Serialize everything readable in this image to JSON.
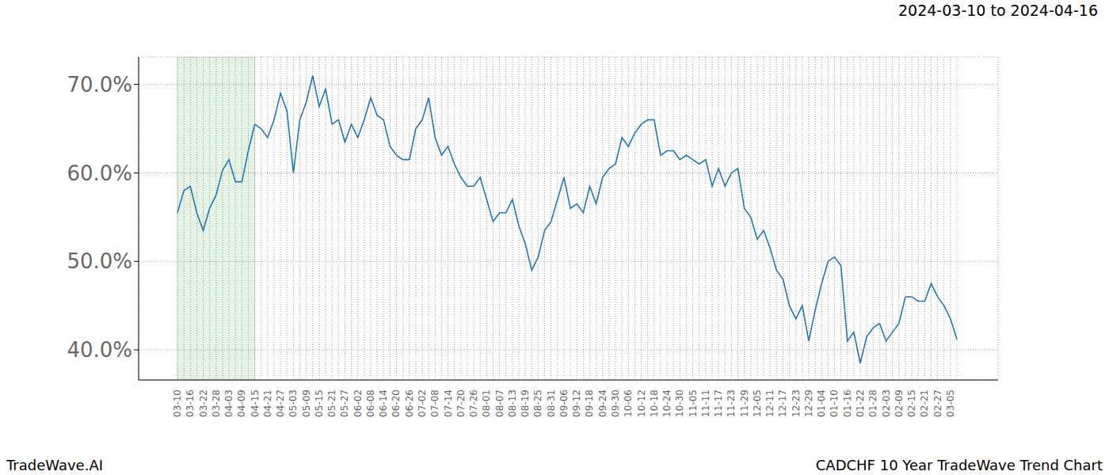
{
  "chart_data": {
    "type": "line",
    "title": "CADCHF 10 Year TradeWave Trend Chart",
    "subtitle": "2024-03-10 to 2024-04-16",
    "annotations": [
      "TradeWave.AI"
    ],
    "categories": [
      "03-10",
      null,
      "03-16",
      null,
      "03-22",
      null,
      "03-28",
      null,
      "04-03",
      null,
      "04-09",
      null,
      "04-15",
      null,
      "04-21",
      null,
      "04-27",
      null,
      "05-03",
      null,
      "05-09",
      null,
      "05-15",
      null,
      "05-21",
      null,
      "05-27",
      null,
      "06-02",
      null,
      "06-08",
      null,
      "06-14",
      null,
      "06-20",
      null,
      "06-26",
      null,
      "07-02",
      null,
      "07-08",
      null,
      "07-14",
      null,
      "07-20",
      null,
      "07-26",
      null,
      "08-01",
      null,
      "08-07",
      null,
      "08-13",
      null,
      "08-19",
      null,
      "08-25",
      null,
      "08-31",
      null,
      "09-06",
      null,
      "09-12",
      null,
      "09-18",
      null,
      "09-24",
      null,
      "09-30",
      null,
      "10-06",
      null,
      "10-12",
      null,
      "10-18",
      null,
      "10-24",
      null,
      "10-30",
      null,
      "11-05",
      null,
      "11-11",
      null,
      "11-17",
      null,
      "11-23",
      null,
      "11-29",
      null,
      "12-05",
      null,
      "12-11",
      null,
      "12-17",
      null,
      "12-23",
      null,
      "12-29",
      null,
      "01-04",
      null,
      "01-10",
      null,
      "01-16",
      null,
      "01-22",
      null,
      "01-28",
      null,
      "02-03",
      null,
      "02-09",
      null,
      "02-15",
      null,
      "02-21",
      null,
      "02-27",
      null,
      "03-05",
      null
    ],
    "values": [
      55.5,
      58,
      58.5,
      55.5,
      53.5,
      56,
      57.5,
      60.3,
      61.5,
      59,
      59,
      62.5,
      65.5,
      65,
      64,
      66,
      69,
      67,
      60,
      66,
      68,
      71,
      67.5,
      69.5,
      65.5,
      66,
      63.5,
      65.5,
      64,
      66,
      68.5,
      66.5,
      66,
      63,
      62,
      61.5,
      61.5,
      65,
      66,
      68.5,
      64,
      62,
      63,
      61,
      59.5,
      58.5,
      58.5,
      59.5,
      57,
      54.5,
      55.5,
      55.5,
      57,
      54,
      52,
      49,
      50.5,
      53.5,
      54.5,
      57,
      59.5,
      56,
      56.5,
      55.5,
      58.5,
      56.5,
      59.5,
      60.5,
      61,
      64,
      63,
      64.5,
      65.5,
      66,
      66,
      62,
      62.5,
      62.5,
      61.5,
      62,
      61.5,
      61,
      61.5,
      58.5,
      60.5,
      58.5,
      60,
      60.5,
      56,
      55,
      52.5,
      53.5,
      51.5,
      49,
      48,
      45,
      43.5,
      45,
      41,
      44.5,
      47.5,
      50,
      50.5,
      49.5,
      41,
      42,
      38.5,
      41.5,
      42.5,
      43,
      41,
      42,
      43,
      46,
      46,
      45.5,
      45.5,
      47.5,
      46,
      45,
      43.5,
      41.2
    ],
    "color": "#1f77b4",
    "ylim": [
      36.6,
      73.1
    ],
    "yticks": [
      {
        "value": 40,
        "label": "40.0%"
      },
      {
        "value": 50,
        "label": "50.0%"
      },
      {
        "value": 60,
        "label": "60.0%"
      },
      {
        "value": 70,
        "label": "70.0%"
      }
    ],
    "grid": true,
    "shaded_range": [
      "03-10",
      "04-15"
    ]
  }
}
